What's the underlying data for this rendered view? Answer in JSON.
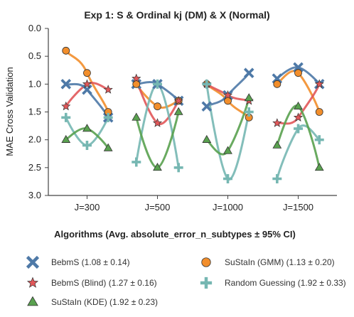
{
  "chart_data": {
    "type": "line",
    "title": "Exp 1: S & Ordinal kj (DM) & X (Normal)",
    "xlabel": "",
    "ylabel": "MAE Cross Validation",
    "ylim": [
      3.0,
      0.0
    ],
    "y_ticks": [
      "0.0",
      "0.5",
      "1.0",
      "1.5",
      "2.0",
      "2.5",
      "3.0"
    ],
    "categories": [
      "J=300",
      "J=500",
      "J=1000",
      "J=1500"
    ],
    "offsets": [
      -0.3,
      -0.15,
      0.0,
      0.15,
      0.3
    ],
    "legend_title": "Algorithms (Avg. absolute_error_n_subtypes ± 95% CI)",
    "series": [
      {
        "name": "BebmS (1.08 ± 0.14)",
        "marker": "x",
        "color": "#4e79a7",
        "values": [
          [
            1.0,
            1.1,
            1.6
          ],
          [
            1.0,
            1.0,
            1.3
          ],
          [
            1.4,
            1.2,
            0.8
          ],
          [
            0.9,
            0.7,
            1.0
          ]
        ]
      },
      {
        "name": "SuStaIn (GMM) (1.13 ± 0.20)",
        "marker": "circle",
        "color": "#f28e2b",
        "values": [
          [
            0.4,
            0.8,
            1.5
          ],
          [
            1.0,
            1.4,
            1.3
          ],
          [
            1.0,
            1.3,
            1.6
          ],
          [
            1.0,
            0.8,
            1.5
          ]
        ]
      },
      {
        "name": "BebmS (Blind) (1.27 ± 0.16)",
        "marker": "star",
        "color": "#e15759",
        "values": [
          [
            1.4,
            1.0,
            1.1
          ],
          [
            0.9,
            1.7,
            1.3
          ],
          [
            1.0,
            1.2,
            1.3
          ],
          [
            1.7,
            1.6,
            1.0
          ]
        ]
      },
      {
        "name": "Random Guessing (1.92 ± 0.33)",
        "marker": "plus",
        "color": "#76b7b2",
        "values": [
          [
            1.6,
            2.1,
            1.6
          ],
          [
            2.4,
            1.0,
            2.5
          ],
          [
            1.0,
            2.7,
            1.5
          ],
          [
            2.7,
            1.8,
            2.0
          ]
        ]
      },
      {
        "name": "SuStaIn (KDE) (1.92 ± 0.23)",
        "marker": "triangle",
        "color": "#59a14f",
        "values": [
          [
            2.0,
            1.8,
            2.15
          ],
          [
            1.6,
            2.5,
            1.5
          ],
          [
            2.0,
            2.2,
            1.25
          ],
          [
            2.1,
            1.4,
            2.5
          ]
        ]
      }
    ],
    "legend_order": [
      0,
      1,
      2,
      3,
      4
    ],
    "grid": false,
    "legend_placement": "bottom"
  }
}
